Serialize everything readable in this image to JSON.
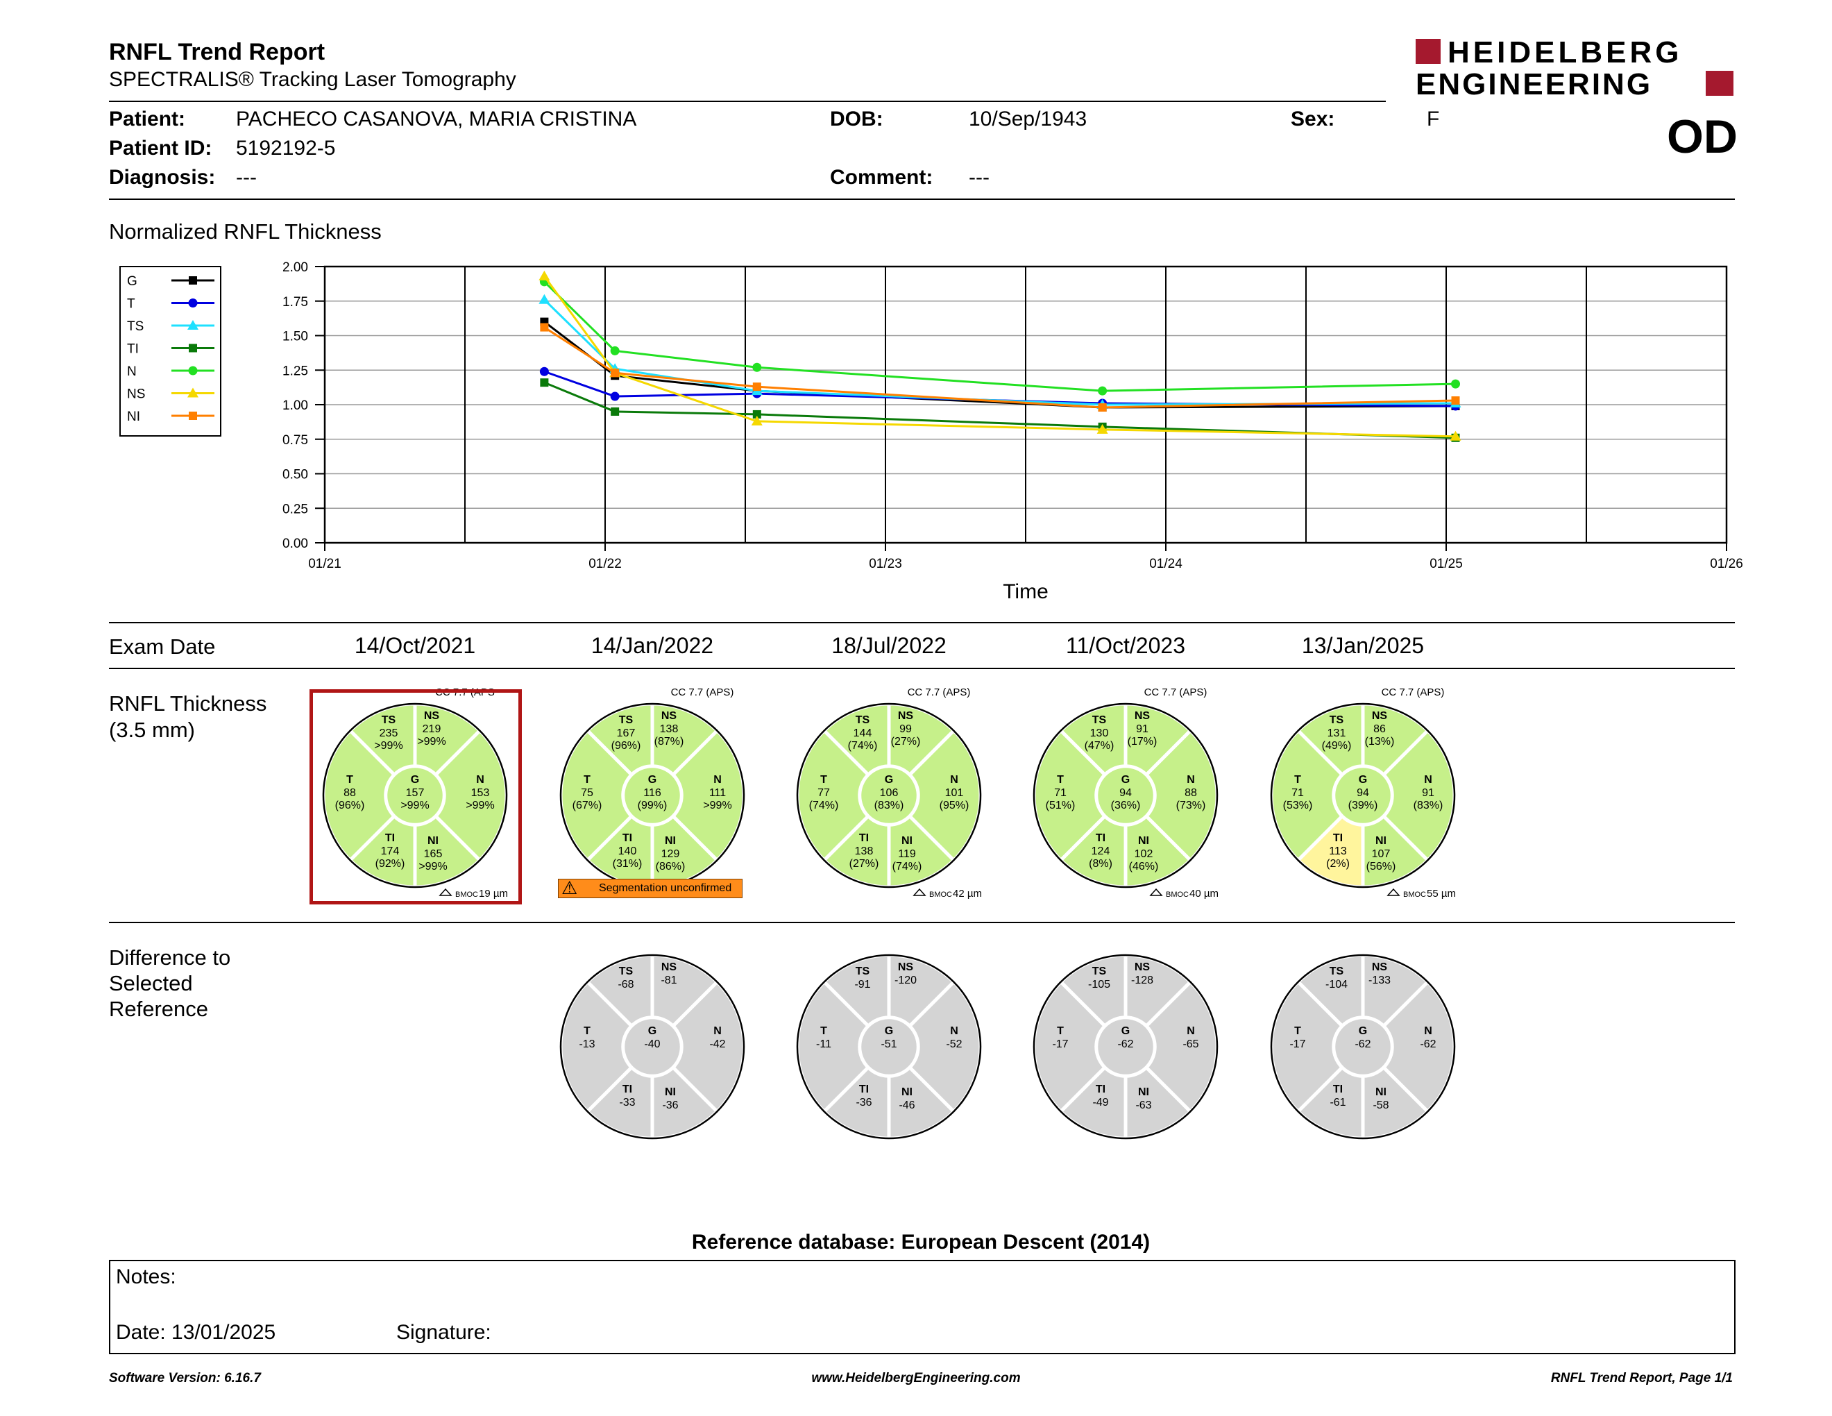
{
  "header": {
    "title": "RNFL Trend Report",
    "subtitle": "SPECTRALIS® Tracking Laser Tomography",
    "brand_line1": "HEIDELBERG",
    "brand_line2": "ENGINEERING",
    "brand_color": "#a5192e",
    "eye": "OD"
  },
  "patient": {
    "patient_label": "Patient:",
    "patient_name": "PACHECO CASANOVA, MARIA CRISTINA",
    "dob_label": "DOB:",
    "dob": "10/Sep/1943",
    "sex_label": "Sex:",
    "sex": "F",
    "id_label": "Patient ID:",
    "id": "5192192-5",
    "diagnosis_label": "Diagnosis:",
    "diagnosis": "---",
    "comment_label": "Comment:",
    "comment": "---"
  },
  "chart_section_title": "Normalized RNFL Thickness",
  "chart_data": {
    "type": "line",
    "title": "Normalized RNFL Thickness",
    "xlabel": "Time",
    "ylabel": "",
    "ylim": [
      0,
      2.0
    ],
    "yticks": [
      "0.00",
      "0.25",
      "0.50",
      "0.75",
      "1.00",
      "1.25",
      "1.50",
      "1.75",
      "2.00"
    ],
    "xticks": [
      "01/21",
      "01/22",
      "01/23",
      "01/24",
      "01/25",
      "01/26"
    ],
    "x": [
      "2021-10-14",
      "2022-01-14",
      "2022-07-18",
      "2023-10-11",
      "2025-01-13"
    ],
    "grid": true,
    "legend_position": "top-left",
    "series": [
      {
        "name": "G",
        "color": "#000000",
        "marker": "square",
        "values": [
          1.6,
          1.21,
          1.1,
          0.98,
          0.99
        ]
      },
      {
        "name": "T",
        "color": "#0000e0",
        "marker": "circle",
        "values": [
          1.24,
          1.06,
          1.08,
          1.01,
          0.99
        ]
      },
      {
        "name": "TS",
        "color": "#1ee0ff",
        "marker": "triangle",
        "values": [
          1.76,
          1.26,
          1.1,
          1.0,
          1.01
        ]
      },
      {
        "name": "TI",
        "color": "#0a7a0a",
        "marker": "square",
        "values": [
          1.16,
          0.95,
          0.93,
          0.84,
          0.76
        ]
      },
      {
        "name": "N",
        "color": "#22e022",
        "marker": "circle",
        "values": [
          1.89,
          1.39,
          1.27,
          1.1,
          1.15
        ]
      },
      {
        "name": "NS",
        "color": "#f5d800",
        "marker": "triangle",
        "values": [
          1.93,
          1.23,
          0.88,
          0.82,
          0.77
        ]
      },
      {
        "name": "NI",
        "color": "#ff7f00",
        "marker": "square",
        "values": [
          1.56,
          1.23,
          1.13,
          0.98,
          1.03
        ]
      }
    ]
  },
  "exam_date_label": "Exam Date",
  "exam_dates": [
    "14/Oct/2021",
    "14/Jan/2022",
    "18/Jul/2022",
    "11/Oct/2023",
    "13/Jan/2025"
  ],
  "rnfl_label_line1": "RNFL Thickness",
  "rnfl_label_line2": "(3.5 mm)",
  "diff_label_line1": "Difference to",
  "diff_label_line2": "Selected",
  "diff_label_line3": "Reference",
  "colors": {
    "within_normal": "#c6f08a",
    "borderline": "#fff59d",
    "difference": "#d4d4d4",
    "selected_border": "#b01515",
    "warning": "#ff8c1a"
  },
  "thickness_circles": [
    {
      "cc": "CC 7.7 (APS",
      "bmoc": "19 µm",
      "selected": true,
      "warning": "",
      "sectors": {
        "TS": [
          "235",
          ">99%"
        ],
        "NS": [
          "219",
          ">99%"
        ],
        "T": [
          "88",
          "(96%)"
        ],
        "G": [
          "157",
          ">99%"
        ],
        "N": [
          "153",
          ">99%"
        ],
        "TI": [
          "174",
          "(92%)"
        ],
        "NI": [
          "165",
          ">99%"
        ]
      },
      "ti_color": "within_normal"
    },
    {
      "cc": "CC 7.7 (APS)",
      "bmoc": "",
      "selected": false,
      "warning": "Segmentation unconfirmed",
      "sectors": {
        "TS": [
          "167",
          "(96%)"
        ],
        "NS": [
          "138",
          "(87%)"
        ],
        "T": [
          "75",
          "(67%)"
        ],
        "G": [
          "116",
          "(99%)"
        ],
        "N": [
          "111",
          ">99%"
        ],
        "TI": [
          "140",
          "(31%)"
        ],
        "NI": [
          "129",
          "(86%)"
        ]
      },
      "ti_color": "within_normal"
    },
    {
      "cc": "CC 7.7 (APS)",
      "bmoc": "42 µm",
      "selected": false,
      "warning": "",
      "sectors": {
        "TS": [
          "144",
          "(74%)"
        ],
        "NS": [
          "99",
          "(27%)"
        ],
        "T": [
          "77",
          "(74%)"
        ],
        "G": [
          "106",
          "(83%)"
        ],
        "N": [
          "101",
          "(95%)"
        ],
        "TI": [
          "138",
          "(27%)"
        ],
        "NI": [
          "119",
          "(74%)"
        ]
      },
      "ti_color": "within_normal"
    },
    {
      "cc": "CC 7.7 (APS)",
      "bmoc": "40 µm",
      "selected": false,
      "warning": "",
      "sectors": {
        "TS": [
          "130",
          "(47%)"
        ],
        "NS": [
          "91",
          "(17%)"
        ],
        "T": [
          "71",
          "(51%)"
        ],
        "G": [
          "94",
          "(36%)"
        ],
        "N": [
          "88",
          "(73%)"
        ],
        "TI": [
          "124",
          "(8%)"
        ],
        "NI": [
          "102",
          "(46%)"
        ]
      },
      "ti_color": "within_normal"
    },
    {
      "cc": "CC 7.7 (APS)",
      "bmoc": "55 µm",
      "selected": false,
      "warning": "",
      "sectors": {
        "TS": [
          "131",
          "(49%)"
        ],
        "NS": [
          "86",
          "(13%)"
        ],
        "T": [
          "71",
          "(53%)"
        ],
        "G": [
          "94",
          "(39%)"
        ],
        "N": [
          "91",
          "(83%)"
        ],
        "TI": [
          "113",
          "(2%)"
        ],
        "NI": [
          "107",
          "(56%)"
        ]
      },
      "ti_color": "borderline"
    }
  ],
  "bmoc_prefix": "BMOC",
  "difference_circles": [
    {
      "TS": "-68",
      "NS": "-81",
      "T": "-13",
      "G": "-40",
      "N": "-42",
      "TI": "-33",
      "NI": "-36"
    },
    {
      "TS": "-91",
      "NS": "-120",
      "T": "-11",
      "G": "-51",
      "N": "-52",
      "TI": "-36",
      "NI": "-46"
    },
    {
      "TS": "-105",
      "NS": "-128",
      "T": "-17",
      "G": "-62",
      "N": "-65",
      "TI": "-49",
      "NI": "-63"
    },
    {
      "TS": "-104",
      "NS": "-133",
      "T": "-17",
      "G": "-62",
      "N": "-62",
      "TI": "-61",
      "NI": "-58"
    }
  ],
  "reference_db": "Reference database: European Descent (2014)",
  "notes": {
    "notes_label": "Notes:",
    "date_label": "Date: 13/01/2025",
    "signature_label": "Signature:"
  },
  "footer": {
    "software": "Software Version: 6.16.7",
    "website": "www.HeidelbergEngineering.com",
    "page": "RNFL Trend Report, Page 1/1"
  }
}
